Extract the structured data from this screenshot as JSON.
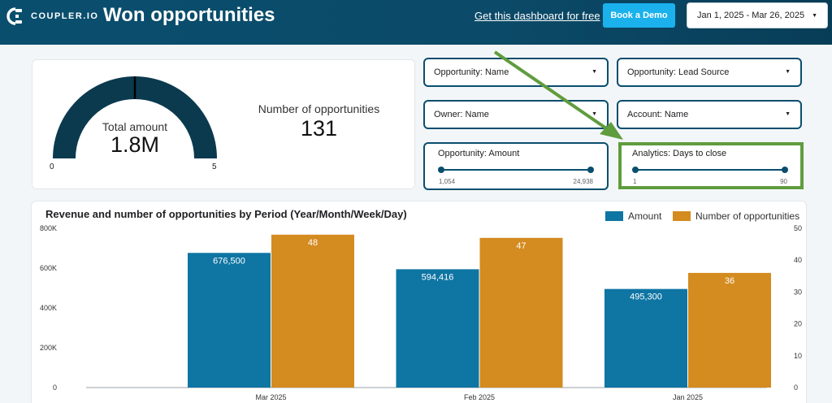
{
  "header": {
    "logo_text": "COUPLER.IO",
    "title": "Won opportunities",
    "link_text": "Get this dashboard for free",
    "demo_button": "Book a Demo",
    "date_range": "Jan 1, 2025 - Mar 26, 2025"
  },
  "kpi": {
    "gauge_label": "Total amount",
    "gauge_value": "1.8M",
    "gauge_min": "0",
    "gauge_max": "5",
    "count_label": "Number of opportunities",
    "count_value": "131"
  },
  "filters": {
    "opp_name": "Opportunity: Name",
    "lead_source": "Opportunity: Lead Source",
    "owner": "Owner: Name",
    "account": "Account: Name"
  },
  "sliders": {
    "amount": {
      "title": "Opportunity: Amount",
      "min": "1,054",
      "max": "24,938"
    },
    "days": {
      "title": "Analytics: Days to close",
      "min": "1",
      "max": "90"
    }
  },
  "chart_data": {
    "type": "bar",
    "title": "Revenue and number of opportunities by Period (Year/Month/Week/Day)",
    "categories": [
      "Mar 2025",
      "Feb 2025",
      "Jan 2025"
    ],
    "series": [
      {
        "name": "Amount",
        "axis": "left",
        "color": "#0f75a3",
        "values": [
          676500,
          594416,
          495300
        ],
        "labels": [
          "676,500",
          "594,416",
          "495,300"
        ]
      },
      {
        "name": "Number of opportunities",
        "axis": "right",
        "color": "#d48b1f",
        "values": [
          48,
          47,
          36
        ],
        "labels": [
          "48",
          "47",
          "36"
        ]
      }
    ],
    "y_left": {
      "min": 0,
      "max": 800000,
      "ticks": [
        0,
        200000,
        400000,
        600000,
        800000
      ],
      "tick_labels": [
        "0",
        "200K",
        "400K",
        "600K",
        "800K"
      ]
    },
    "y_right": {
      "min": 0,
      "max": 50,
      "ticks": [
        0,
        10,
        20,
        30,
        40,
        50
      ],
      "tick_labels": [
        "0",
        "10",
        "20",
        "30",
        "40",
        "50"
      ]
    },
    "legend_position": "top-right",
    "gauge_fraction": 0.36
  }
}
